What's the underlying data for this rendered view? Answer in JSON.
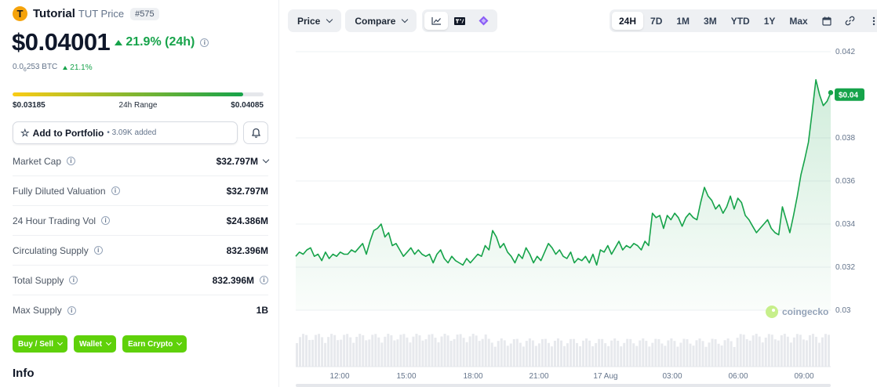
{
  "coin": {
    "logo_letter": "T",
    "name": "Tutorial",
    "symbol_label": "TUT Price",
    "rank": "#575",
    "price": "$0.04001",
    "change_24h": "21.9% (24h)",
    "btc_price_prefix": "0.0",
    "btc_price_sub": "6",
    "btc_price_rest": "253 BTC",
    "btc_change": "21.1%"
  },
  "range_24h": {
    "low": "$0.03185",
    "label": "24h Range",
    "high": "$0.04085",
    "fill_fraction": 0.92
  },
  "portfolio": {
    "button_label": "Add to Portfolio",
    "added_text": "• 3.09K added"
  },
  "stats": [
    {
      "label": "Market Cap",
      "value": "$32.797M"
    },
    {
      "label": "Fully Diluted Valuation",
      "value": "$32.797M"
    },
    {
      "label": "24 Hour Trading Vol",
      "value": "$24.386M"
    },
    {
      "label": "Circulating Supply",
      "value": "832.396M"
    },
    {
      "label": "Total Supply",
      "value": "832.396M"
    },
    {
      "label": "Max Supply",
      "value": "1B"
    }
  ],
  "actions": [
    "Buy / Sell",
    "Wallet",
    "Earn Crypto"
  ],
  "info_heading": "Info",
  "toolbar": {
    "price_label": "Price",
    "compare_label": "Compare",
    "ranges": [
      "24H",
      "7D",
      "1M",
      "3M",
      "YTD",
      "1Y",
      "Max"
    ],
    "active_range": "24H"
  },
  "watermark": "coingecko",
  "colors": {
    "accent_green": "#16a34a",
    "button_green": "#5fd10a",
    "logo_orange": "#f5a30b"
  },
  "chart_data": {
    "type": "area",
    "x_ticks": [
      "12:00",
      "15:00",
      "18:00",
      "21:00",
      "17 Aug",
      "03:00",
      "06:00",
      "09:00"
    ],
    "y_ticks": [
      0.03,
      0.032,
      0.034,
      0.036,
      0.038,
      0.042
    ],
    "ylim": [
      0.03,
      0.042
    ],
    "current_price_label": "$0.04",
    "current_price": 0.04001,
    "series": [
      {
        "values": [
          0.0325,
          0.0327,
          0.0326,
          0.0328,
          0.0329,
          0.0325,
          0.0326,
          0.0323,
          0.0327,
          0.0324,
          0.0326,
          0.0325,
          0.0327,
          0.0326,
          0.0326,
          0.0328,
          0.0327,
          0.0329,
          0.0331,
          0.0326,
          0.0332,
          0.0337,
          0.0338,
          0.034,
          0.0334,
          0.0336,
          0.033,
          0.0331,
          0.0328,
          0.0325,
          0.0327,
          0.0329,
          0.0326,
          0.0328,
          0.0326,
          0.0325,
          0.0326,
          0.0322,
          0.0326,
          0.0328,
          0.0324,
          0.0322,
          0.0325,
          0.0323,
          0.0322,
          0.0321,
          0.0324,
          0.0322,
          0.0324,
          0.0326,
          0.0325,
          0.033,
          0.0328,
          0.0337,
          0.0334,
          0.0329,
          0.0331,
          0.0327,
          0.0325,
          0.0322,
          0.0326,
          0.0324,
          0.0329,
          0.0326,
          0.0322,
          0.0325,
          0.0323,
          0.0327,
          0.0331,
          0.0329,
          0.0326,
          0.0328,
          0.0325,
          0.0324,
          0.0327,
          0.0322,
          0.0324,
          0.0323,
          0.0325,
          0.0322,
          0.0326,
          0.0321,
          0.0328,
          0.0327,
          0.033,
          0.0326,
          0.0329,
          0.0332,
          0.0328,
          0.033,
          0.0329,
          0.0331,
          0.033,
          0.0328,
          0.0332,
          0.033,
          0.0345,
          0.0343,
          0.0344,
          0.0338,
          0.0344,
          0.0342,
          0.0345,
          0.0343,
          0.0339,
          0.0343,
          0.0345,
          0.0343,
          0.0342,
          0.035,
          0.0357,
          0.0353,
          0.0351,
          0.0347,
          0.0349,
          0.0345,
          0.0348,
          0.0353,
          0.0347,
          0.0352,
          0.035,
          0.0344,
          0.0342,
          0.0339,
          0.0336,
          0.0338,
          0.034,
          0.0342,
          0.0338,
          0.0336,
          0.0335,
          0.0348,
          0.0342,
          0.0336,
          0.0344,
          0.0353,
          0.0363,
          0.037,
          0.0378,
          0.0392,
          0.0407,
          0.04,
          0.0395,
          0.0397,
          0.0401
        ]
      }
    ]
  }
}
